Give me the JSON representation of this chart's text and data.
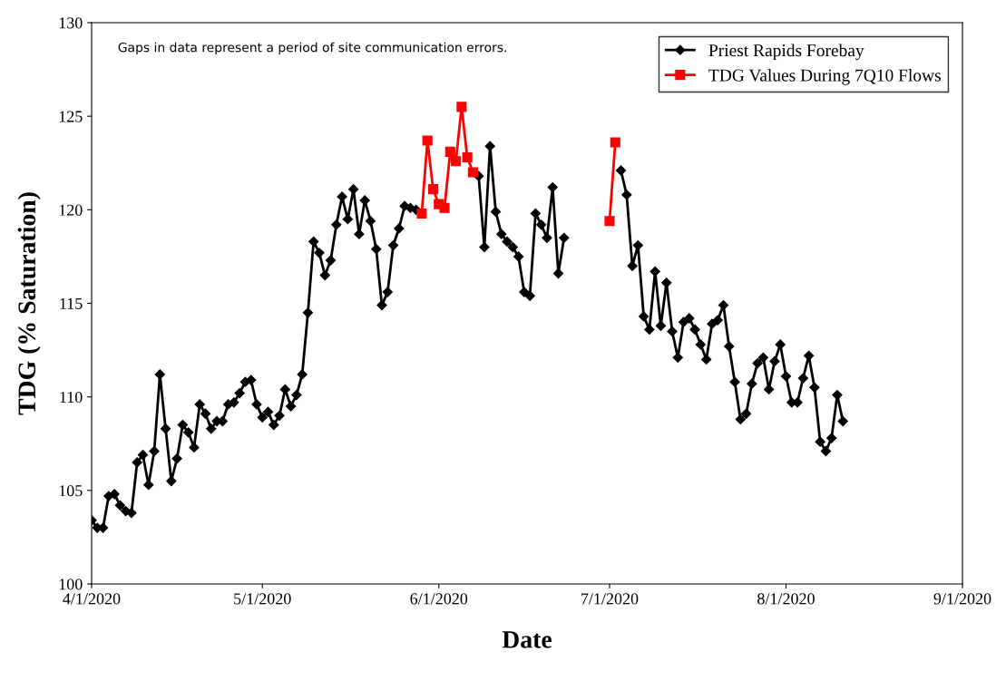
{
  "chart_data": {
    "type": "line",
    "xlabel": "Date",
    "ylabel": "TDG (% Saturation)",
    "annotations": [
      "Gaps in data represent a period of site communication errors."
    ],
    "x": [
      "2020-04-01",
      "2020-04-02",
      "2020-04-03",
      "2020-04-04",
      "2020-04-05",
      "2020-04-06",
      "2020-04-07",
      "2020-04-08",
      "2020-04-09",
      "2020-04-10",
      "2020-04-11",
      "2020-04-12",
      "2020-04-13",
      "2020-04-14",
      "2020-04-15",
      "2020-04-16",
      "2020-04-17",
      "2020-04-18",
      "2020-04-19",
      "2020-04-20",
      "2020-04-21",
      "2020-04-22",
      "2020-04-23",
      "2020-04-24",
      "2020-04-25",
      "2020-04-26",
      "2020-04-27",
      "2020-04-28",
      "2020-04-29",
      "2020-04-30",
      "2020-05-01",
      "2020-05-02",
      "2020-05-03",
      "2020-05-04",
      "2020-05-05",
      "2020-05-06",
      "2020-05-07",
      "2020-05-08",
      "2020-05-09",
      "2020-05-10",
      "2020-05-11",
      "2020-05-12",
      "2020-05-13",
      "2020-05-14",
      "2020-05-15",
      "2020-05-16",
      "2020-05-17",
      "2020-05-18",
      "2020-05-19",
      "2020-05-20",
      "2020-05-21",
      "2020-05-22",
      "2020-05-23",
      "2020-05-24",
      "2020-05-25",
      "2020-05-26",
      "2020-05-27",
      "2020-05-28",
      "2020-05-29",
      "2020-05-30",
      "2020-05-31",
      "2020-06-01",
      "2020-06-02",
      "2020-06-03",
      "2020-06-04",
      "2020-06-05",
      "2020-06-06",
      "2020-06-07",
      "2020-06-08",
      "2020-06-09",
      "2020-06-10",
      "2020-06-11",
      "2020-06-12",
      "2020-06-13",
      "2020-06-14",
      "2020-06-15",
      "2020-06-16",
      "2020-06-17",
      "2020-06-18",
      "2020-06-19",
      "2020-06-20",
      "2020-06-21",
      "2020-06-22",
      "2020-06-23",
      "2020-06-24",
      "2020-06-25",
      "2020-06-26",
      "2020-06-27",
      "2020-06-28",
      "2020-06-29",
      "2020-06-30",
      "2020-07-01",
      "2020-07-02",
      "2020-07-03",
      "2020-07-04",
      "2020-07-05",
      "2020-07-06",
      "2020-07-07",
      "2020-07-08",
      "2020-07-09",
      "2020-07-10",
      "2020-07-11",
      "2020-07-12",
      "2020-07-13",
      "2020-07-14",
      "2020-07-15",
      "2020-07-16",
      "2020-07-17",
      "2020-07-18",
      "2020-07-19",
      "2020-07-20",
      "2020-07-21",
      "2020-07-22",
      "2020-07-23",
      "2020-07-24",
      "2020-07-25",
      "2020-07-26",
      "2020-07-27",
      "2020-07-28",
      "2020-07-29",
      "2020-07-30",
      "2020-07-31",
      "2020-08-01",
      "2020-08-02",
      "2020-08-03",
      "2020-08-04",
      "2020-08-05",
      "2020-08-06",
      "2020-08-07",
      "2020-08-08",
      "2020-08-09",
      "2020-08-10",
      "2020-08-11"
    ],
    "series": [
      {
        "name": "Priest Rapids Forebay",
        "color": "#000000",
        "marker": "diamond",
        "values": [
          103.4,
          103.0,
          103.0,
          104.7,
          104.8,
          104.2,
          103.9,
          103.8,
          106.5,
          106.9,
          105.3,
          107.1,
          111.2,
          108.3,
          105.5,
          106.7,
          108.5,
          108.1,
          107.3,
          109.6,
          109.1,
          108.3,
          108.7,
          108.7,
          109.6,
          109.7,
          110.2,
          110.8,
          110.9,
          109.6,
          108.9,
          109.2,
          108.5,
          109.0,
          110.4,
          109.5,
          110.1,
          111.2,
          114.5,
          118.3,
          117.7,
          116.5,
          117.3,
          119.2,
          120.7,
          119.5,
          121.1,
          118.7,
          120.5,
          119.4,
          117.9,
          114.9,
          115.6,
          118.1,
          119.0,
          120.2,
          120.1,
          120.0,
          null,
          null,
          null,
          null,
          null,
          null,
          null,
          null,
          null,
          null,
          121.8,
          118.0,
          123.4,
          119.9,
          118.7,
          118.3,
          118.0,
          117.5,
          115.6,
          115.4,
          119.8,
          119.2,
          118.5,
          121.2,
          116.6,
          118.5,
          null,
          null,
          null,
          null,
          null,
          null,
          null,
          null,
          null,
          122.1,
          120.8,
          117.0,
          118.1,
          114.3,
          113.6,
          116.7,
          113.8,
          116.1,
          113.5,
          112.1,
          114.0,
          114.2,
          113.6,
          112.8,
          112.0,
          113.9,
          114.1,
          114.9,
          112.7,
          110.8,
          108.8,
          109.1,
          110.7,
          111.8,
          112.1,
          110.4,
          111.9,
          112.8,
          111.1,
          109.7,
          109.7,
          111.0,
          112.2,
          110.5,
          107.6,
          107.1,
          107.8,
          110.1,
          108.7
        ]
      },
      {
        "name": "TDG Values During 7Q10 Flows",
        "color": "#ff0000",
        "marker": "square",
        "x": [
          "2020-05-29",
          "2020-05-30",
          "2020-05-31",
          "2020-06-01",
          "2020-06-02",
          "2020-06-03",
          "2020-06-04",
          "2020-06-05",
          "2020-06-06",
          "2020-06-07",
          "2020-06-20",
          "2020-07-01",
          "2020-07-02"
        ],
        "values": [
          119.8,
          123.7,
          121.1,
          120.3,
          120.1,
          123.1,
          122.6,
          125.5,
          122.8,
          122.0,
          null,
          119.4,
          123.6
        ]
      }
    ],
    "xlim": [
      "2020-04-01",
      "2020-09-01"
    ],
    "xticks": [
      {
        "value": "2020-04-01",
        "label": "4/1/2020"
      },
      {
        "value": "2020-05-01",
        "label": "5/1/2020"
      },
      {
        "value": "2020-06-01",
        "label": "6/1/2020"
      },
      {
        "value": "2020-07-01",
        "label": "7/1/2020"
      },
      {
        "value": "2020-08-01",
        "label": "8/1/2020"
      },
      {
        "value": "2020-09-01",
        "label": "9/1/2020"
      }
    ],
    "ylim": [
      100,
      130
    ],
    "yticks": [
      100,
      105,
      110,
      115,
      120,
      125,
      130
    ],
    "grid": false,
    "legend": "top right",
    "line_style": "solid"
  }
}
